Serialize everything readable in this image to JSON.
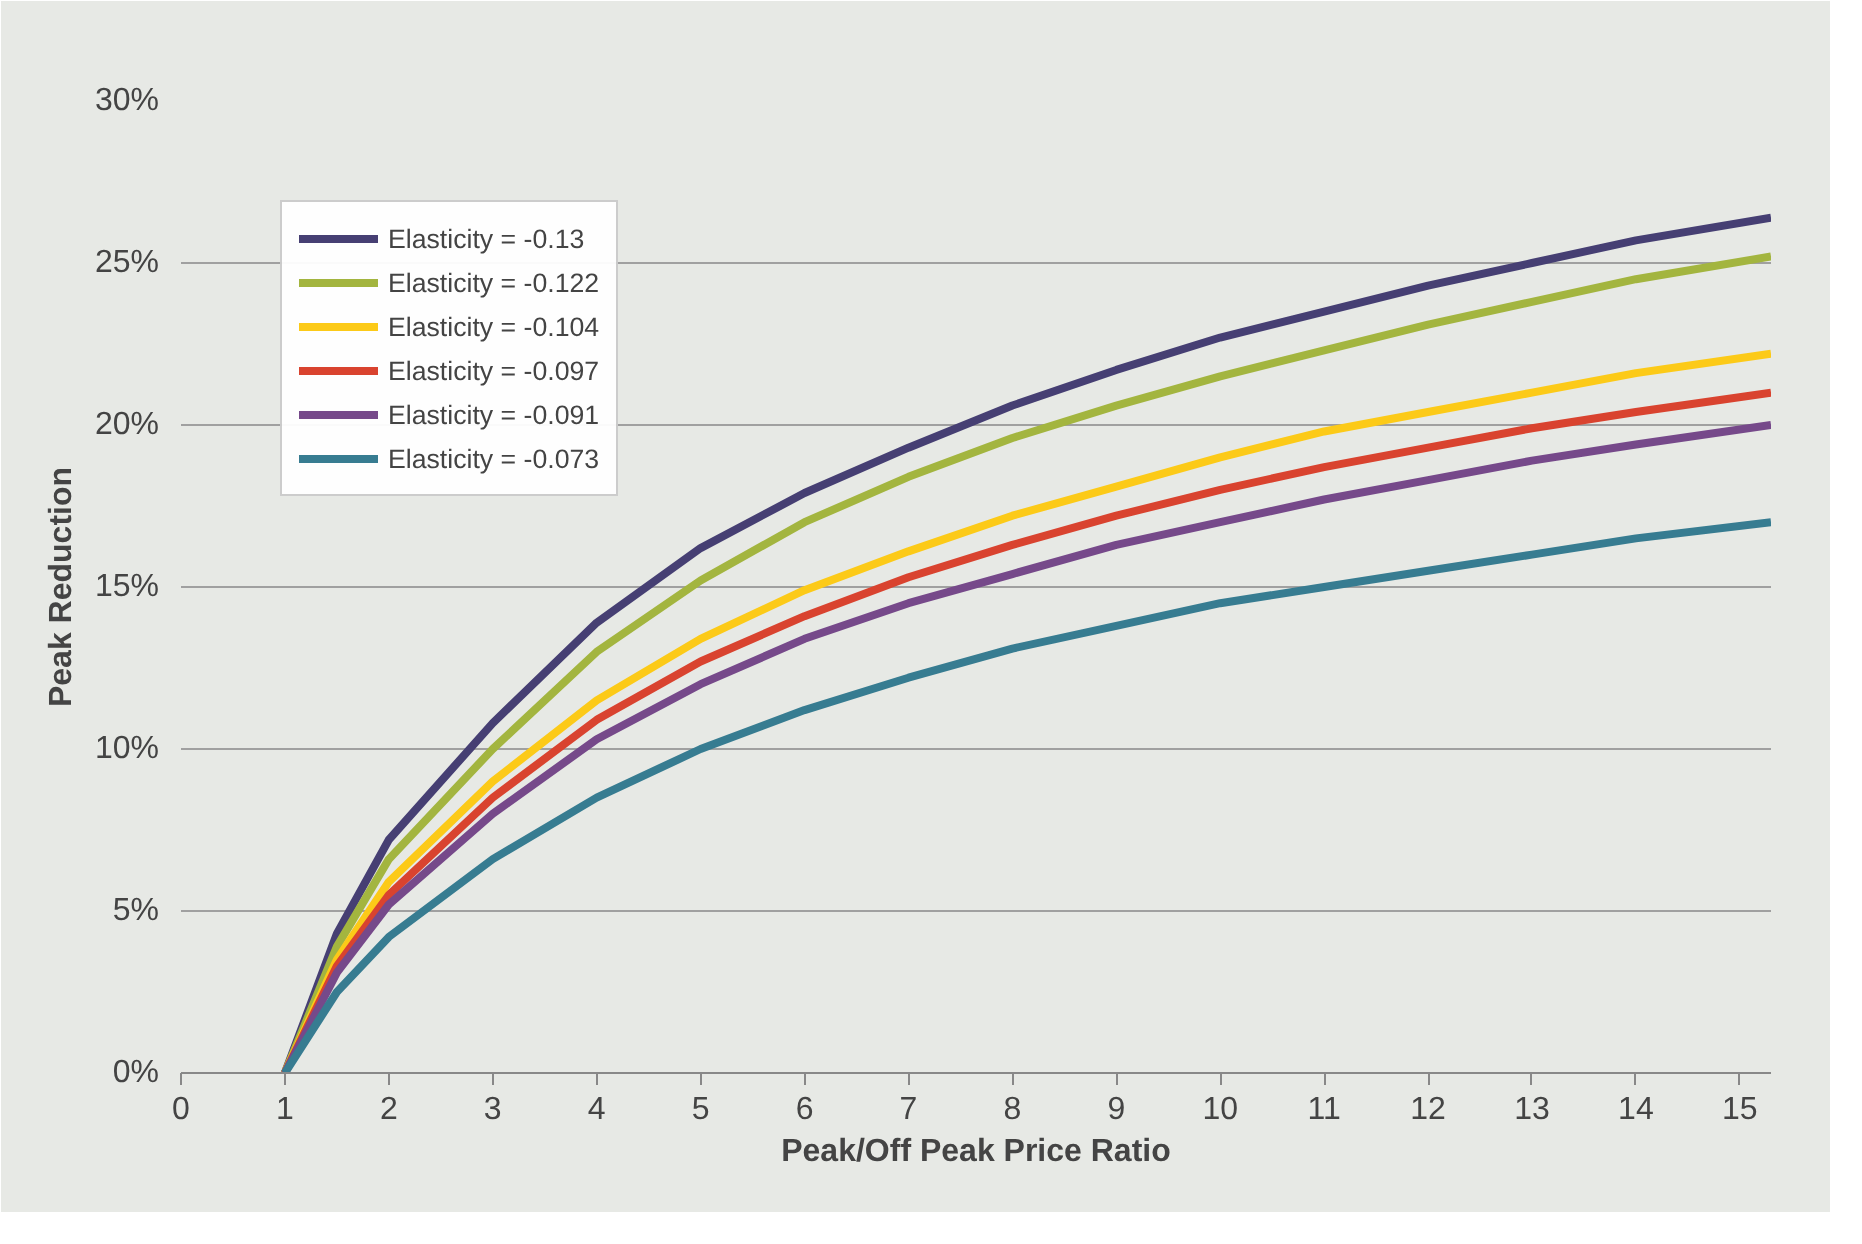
{
  "chart_data": {
    "type": "line",
    "xlabel": "Peak/Off Peak Price Ratio",
    "ylabel": "Peak Reduction",
    "x": [
      1,
      1.5,
      2,
      3,
      4,
      5,
      6,
      7,
      8,
      9,
      10,
      11,
      12,
      13,
      14,
      15.3
    ],
    "series": [
      {
        "name": "Elasticity = -0.13",
        "color": "#463f73",
        "values": [
          0,
          4.3,
          7.2,
          10.8,
          13.9,
          16.2,
          17.9,
          19.3,
          20.6,
          21.7,
          22.7,
          23.5,
          24.3,
          25.0,
          25.7,
          26.4
        ]
      },
      {
        "name": "Elasticity = -0.122",
        "color": "#a3b53f",
        "values": [
          0,
          3.9,
          6.6,
          10.0,
          13.0,
          15.2,
          17.0,
          18.4,
          19.6,
          20.6,
          21.5,
          22.3,
          23.1,
          23.8,
          24.5,
          25.2
        ]
      },
      {
        "name": "Elasticity = -0.104",
        "color": "#fcca18",
        "values": [
          0,
          3.5,
          5.9,
          9.0,
          11.5,
          13.4,
          14.9,
          16.1,
          17.2,
          18.1,
          19.0,
          19.8,
          20.4,
          21.0,
          21.6,
          22.2
        ]
      },
      {
        "name": "Elasticity = -0.097",
        "color": "#d9432f",
        "values": [
          0,
          3.3,
          5.5,
          8.5,
          10.9,
          12.7,
          14.1,
          15.3,
          16.3,
          17.2,
          18.0,
          18.7,
          19.3,
          19.9,
          20.4,
          21.0
        ]
      },
      {
        "name": "Elasticity = -0.091",
        "color": "#76498a",
        "values": [
          0,
          3.1,
          5.2,
          8.0,
          10.3,
          12.0,
          13.4,
          14.5,
          15.4,
          16.3,
          17.0,
          17.7,
          18.3,
          18.9,
          19.4,
          20.0
        ]
      },
      {
        "name": "Elasticity = -0.073",
        "color": "#377c91",
        "values": [
          0,
          2.5,
          4.2,
          6.6,
          8.5,
          10.0,
          11.2,
          12.2,
          13.1,
          13.8,
          14.5,
          15.0,
          15.5,
          16.0,
          16.5,
          17.0
        ]
      }
    ],
    "xlim": [
      0,
      15.3
    ],
    "xticks": [
      0,
      1,
      2,
      3,
      4,
      5,
      6,
      7,
      8,
      9,
      10,
      11,
      12,
      13,
      14,
      15
    ],
    "ylim": [
      0,
      30
    ],
    "yticks": [
      {
        "value": 0,
        "label": "0%"
      },
      {
        "value": 5,
        "label": "5%"
      },
      {
        "value": 10,
        "label": "10%"
      },
      {
        "value": 15,
        "label": "15%"
      },
      {
        "value": 20,
        "label": "20%"
      },
      {
        "value": 25,
        "label": "25%"
      },
      {
        "value": 30,
        "label": "30%"
      }
    ],
    "grid": "y",
    "legend": "top left",
    "marker": "none",
    "line_style": "solid"
  }
}
